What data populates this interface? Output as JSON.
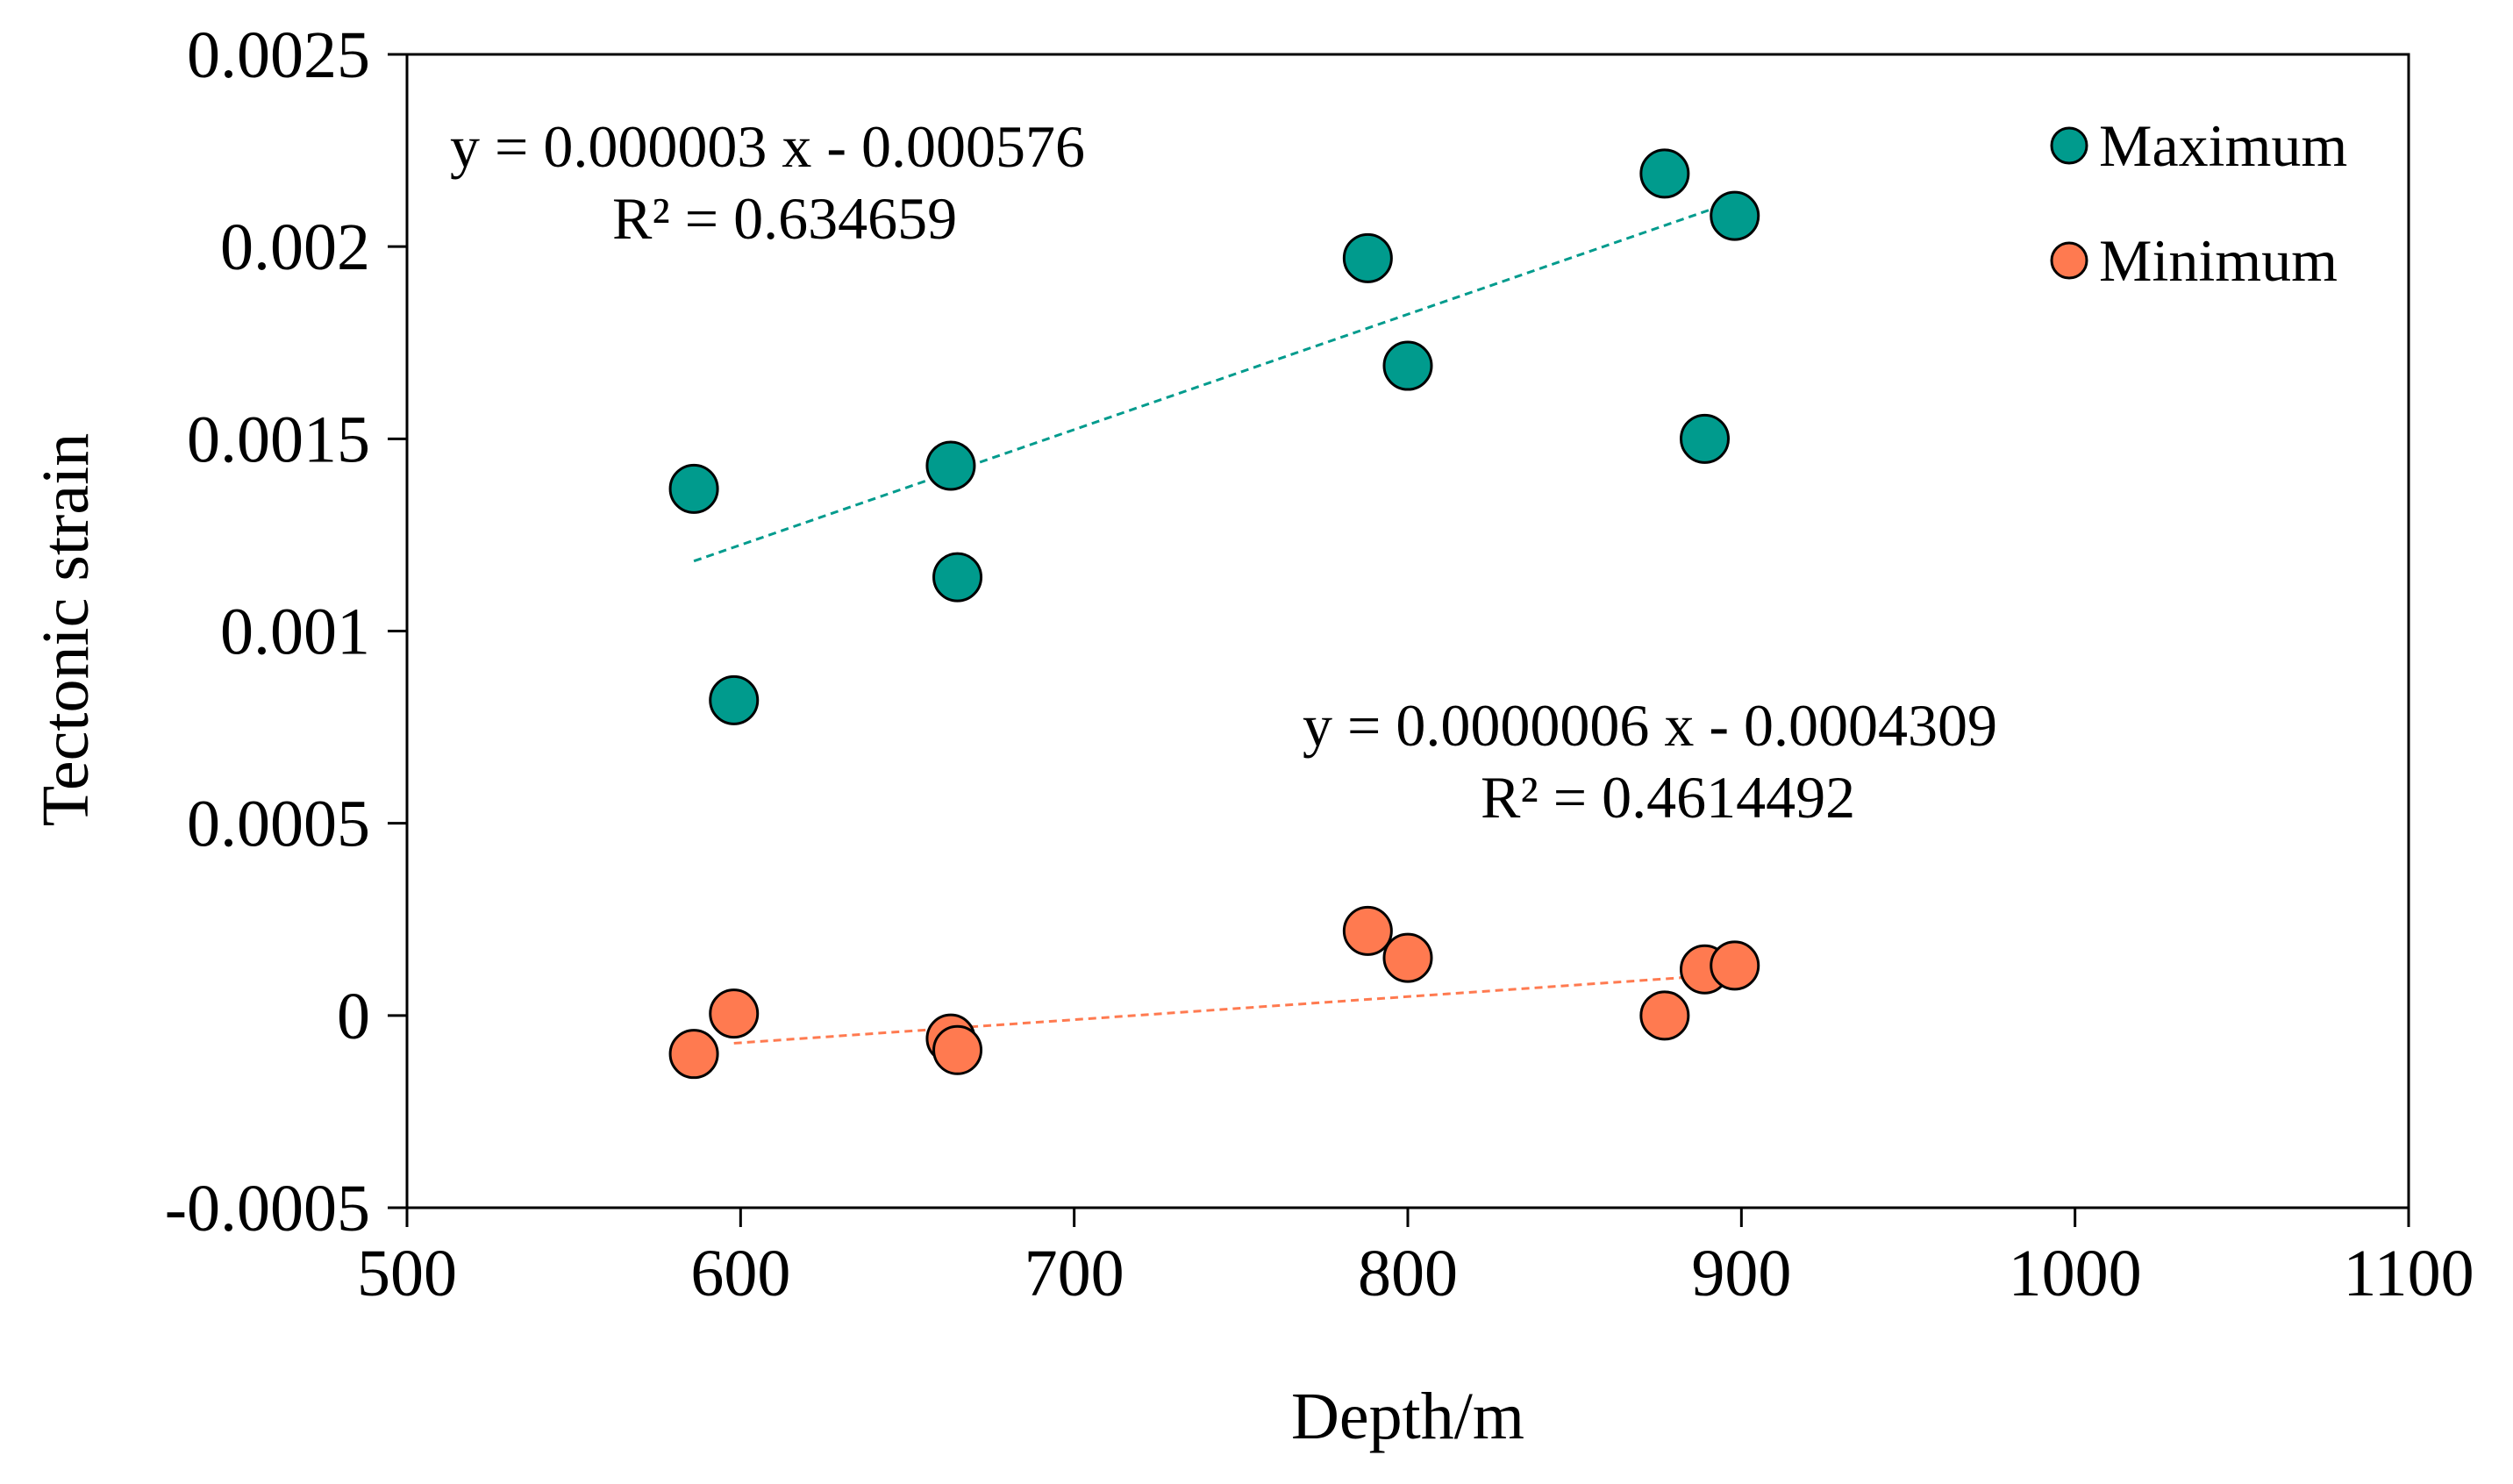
{
  "chart_data": {
    "type": "scatter",
    "title": "",
    "xlabel": "Depth/m",
    "ylabel": "Tectonic strain",
    "xlim": [
      500,
      1100
    ],
    "ylim": [
      -0.0005,
      0.0025
    ],
    "x_ticks": [
      500,
      600,
      700,
      800,
      900,
      1000,
      1100
    ],
    "x_tick_labels": [
      "500",
      "600",
      "700",
      "800",
      "900",
      "1000",
      "1100"
    ],
    "y_ticks": [
      -0.0005,
      0,
      0.0005,
      0.001,
      0.0015,
      0.002,
      0.0025
    ],
    "y_tick_labels": [
      "-0.0005",
      "0",
      "0.0005",
      "0.001",
      "0.0015",
      "0.002",
      "0.0025"
    ],
    "grid": false,
    "legend_position": "top-right",
    "series": [
      {
        "name": "Maximum",
        "color": "#009B8D",
        "x": [
          586,
          598,
          663,
          665,
          788,
          800,
          877,
          889,
          898
        ],
        "y": [
          0.00137,
          0.00082,
          0.00143,
          0.00114,
          0.00197,
          0.00169,
          0.00219,
          0.0015,
          0.00208
        ],
        "trendline": {
          "x_range": [
            586,
            898
          ],
          "slope": 3e-06,
          "intercept": -0.000576,
          "equation": "y = 0.000003 x - 0.000576",
          "r2": "R² = 0.634659"
        }
      },
      {
        "name": "Minimum",
        "color": "#FF7A50",
        "x": [
          586,
          598,
          663,
          665,
          788,
          800,
          877,
          889,
          898
        ],
        "y": [
          -0.0001,
          5e-06,
          -6e-05,
          -9e-05,
          0.00022,
          0.00015,
          0.0,
          0.00012,
          0.00013
        ],
        "trendline": {
          "x_range": [
            598,
            898
          ],
          "slope": 6e-07,
          "intercept": -0.0004309,
          "equation": "y = 0.0000006 x - 0.0004309",
          "r2": "R² = 0.4614492"
        }
      }
    ]
  }
}
